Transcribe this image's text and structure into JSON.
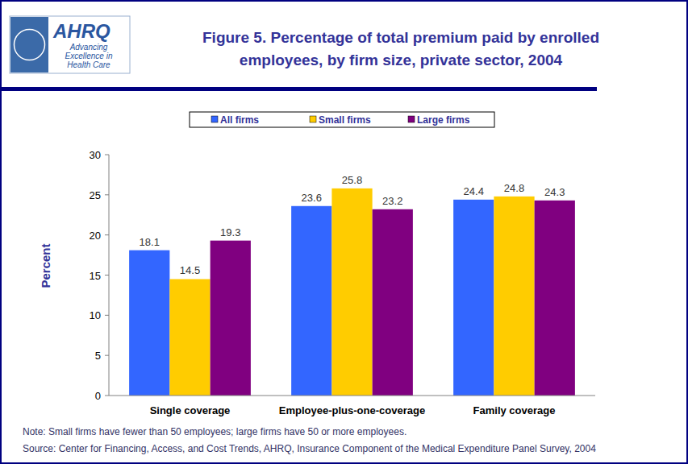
{
  "chart_data": {
    "type": "bar",
    "title": "Figure 5. Percentage of total premium paid by enrolled employees, by firm size, private sector, 2004",
    "y_label": "Percent",
    "categories": [
      "Single coverage",
      "Employee-plus-one-coverage",
      "Family coverage"
    ],
    "series": [
      {
        "name": "All firms",
        "color": "#3366ff",
        "values": [
          18.1,
          23.6,
          24.4
        ]
      },
      {
        "name": "Small firms",
        "color": "#ffcc00",
        "values": [
          14.5,
          25.8,
          24.8
        ]
      },
      {
        "name": "Large firms",
        "color": "#800080",
        "values": [
          19.3,
          23.2,
          24.3
        ]
      }
    ],
    "ylim": [
      0,
      30
    ],
    "yticks": [
      0,
      5,
      10,
      15,
      20,
      25,
      30
    ],
    "grid": false,
    "legend": "top",
    "data_labels": true,
    "annotations": [
      "Note: Small firms have fewer than 50 employees; large firms have 50 or more employees.",
      "Source: Center for Financing, Access, and Cost Trends, AHRQ, Insurance Component of the Medical Expenditure Panel Survey, 2004"
    ]
  },
  "logo": {
    "name": "AHRQ",
    "tagline": [
      "Advancing",
      "Excellence in",
      "Health Care"
    ]
  }
}
